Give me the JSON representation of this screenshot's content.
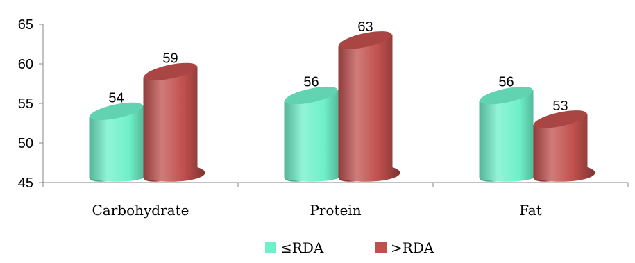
{
  "chart_data": {
    "type": "bar",
    "style": "3d-cylinder",
    "categories": [
      "Carbohydrate",
      "Protein",
      "Fat"
    ],
    "series": [
      {
        "name": "≤RDA",
        "values": [
          54,
          56,
          56
        ],
        "color": "#6ef0c8"
      },
      {
        "name": ">RDA",
        "values": [
          59,
          63,
          53
        ],
        "color": "#c0504d"
      }
    ],
    "ylim": [
      45,
      65
    ],
    "yticks": [
      45,
      50,
      55,
      60,
      65
    ],
    "grid": false,
    "legend_position": "bottom",
    "title": "",
    "xlabel": "",
    "ylabel": ""
  }
}
